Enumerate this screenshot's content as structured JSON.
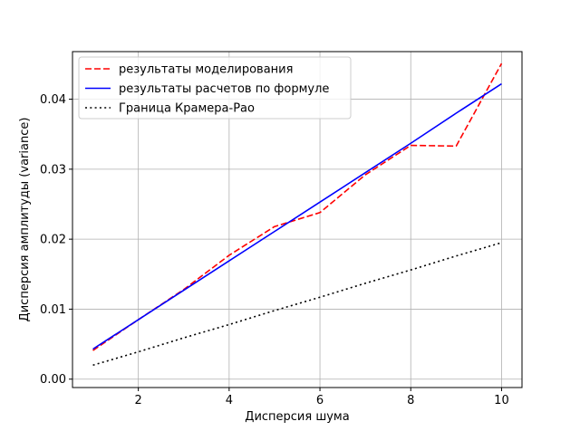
{
  "chart_data": {
    "type": "line",
    "xlabel": "Дисперсия шума",
    "ylabel": "Дисперсия амплитуды (variance)",
    "xlim": [
      0.55,
      10.45
    ],
    "ylim": [
      -0.0012,
      0.0468
    ],
    "xticks": [
      2,
      4,
      6,
      8,
      10
    ],
    "yticks": [
      0.0,
      0.01,
      0.02,
      0.03,
      0.04
    ],
    "xtick_labels": [
      "2",
      "4",
      "6",
      "8",
      "10"
    ],
    "ytick_labels": [
      "0.00",
      "0.01",
      "0.02",
      "0.03",
      "0.04"
    ],
    "grid": true,
    "legend_position": "upper-left",
    "x": [
      1,
      2,
      3,
      4,
      5,
      6,
      7,
      8,
      9,
      10
    ],
    "series": [
      {
        "name": "результаты моделирования",
        "color": "#ff0000",
        "style": "dashed",
        "values": [
          0.0041,
          0.0085,
          0.0128,
          0.0177,
          0.0218,
          0.0238,
          0.0292,
          0.0334,
          0.0333,
          0.0451
        ]
      },
      {
        "name": "результаты расчетов по формуле",
        "color": "#0000ff",
        "style": "solid",
        "values": [
          0.0043,
          0.0085,
          0.0127,
          0.0169,
          0.0211,
          0.0253,
          0.0295,
          0.0337,
          0.038,
          0.0422
        ]
      },
      {
        "name": "Граница Крамера-Рао",
        "color": "#000000",
        "style": "dotted",
        "values": [
          0.002,
          0.0039,
          0.0059,
          0.0078,
          0.0098,
          0.0117,
          0.0137,
          0.0156,
          0.0176,
          0.0195
        ]
      }
    ]
  }
}
